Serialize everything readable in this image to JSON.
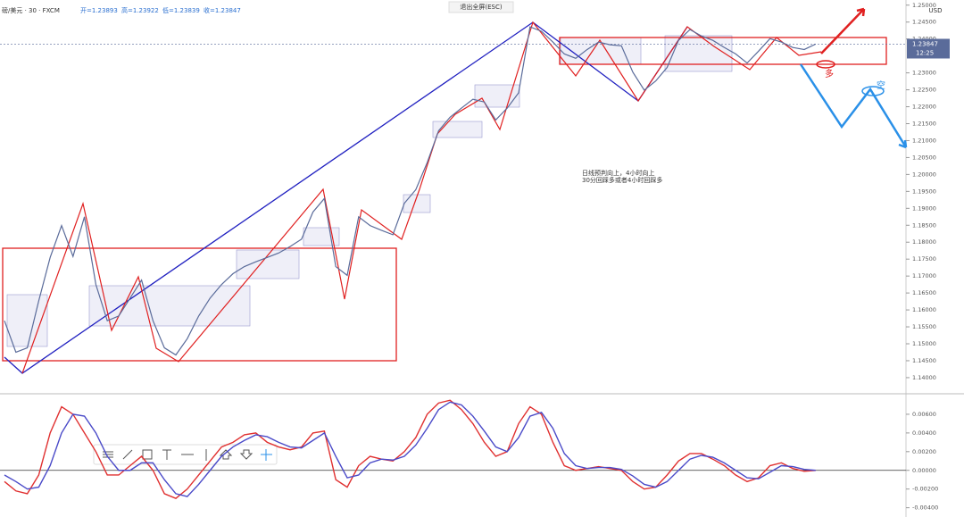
{
  "chart_data": {
    "type": "line",
    "title": "磅/美元 · 30 · FXCM",
    "ohlc": [
      "开=1.23893",
      "高=1.23922",
      "低=1.23839",
      "收=1.23847"
    ],
    "exit_fullscreen": "退出全屏(ESC)",
    "y_axis_label": "USD",
    "last_price": {
      "value": 1.23847,
      "label": "1.23847"
    },
    "countdown": "12:25",
    "annotations": [
      "日线预判向上，4小时向上",
      "30分回踩多或者4小时回踩多",
      "多",
      "空"
    ],
    "color": "#5a6b9a",
    "values": [
      1.1568,
      1.1475,
      1.1488,
      1.1627,
      1.1755,
      1.1849,
      1.1758,
      1.1875,
      1.1675,
      1.1568,
      1.1582,
      1.1635,
      1.1688,
      1.1568,
      1.1488,
      1.1467,
      1.1515,
      1.1582,
      1.1635,
      1.1675,
      1.1707,
      1.1728,
      1.1742,
      1.1755,
      1.1768,
      1.1787,
      1.1809,
      1.1889,
      1.1929,
      1.1728,
      1.1702,
      1.1875,
      1.1849,
      1.1835,
      1.1822,
      1.1915,
      1.1955,
      1.2035,
      1.2129,
      1.2169,
      1.2196,
      1.2222,
      1.2214,
      1.2161,
      1.2196,
      1.2241,
      1.2436,
      1.2423,
      1.2391,
      1.2356,
      1.2343,
      1.2369,
      1.2391,
      1.2383,
      1.238,
      1.2302,
      1.2249,
      1.2276,
      1.2316,
      1.2396,
      1.2428,
      1.2409,
      1.2396,
      1.2375,
      1.2356,
      1.2329,
      1.2364,
      1.2401,
      1.2391,
      1.2375,
      1.2369,
      1.2385
    ],
    "ylim": [
      1.1355,
      1.2502
    ],
    "yticks": [
      {
        "value": 1.14,
        "label": "1.14000"
      },
      {
        "value": 1.145,
        "label": "1.14500"
      },
      {
        "value": 1.15,
        "label": "1.15000"
      },
      {
        "value": 1.155,
        "label": "1.15500"
      },
      {
        "value": 1.16,
        "label": "1.16000"
      },
      {
        "value": 1.165,
        "label": "1.16500"
      },
      {
        "value": 1.17,
        "label": "1.17000"
      },
      {
        "value": 1.175,
        "label": "1.17500"
      },
      {
        "value": 1.18,
        "label": "1.18000"
      },
      {
        "value": 1.185,
        "label": "1.18500"
      },
      {
        "value": 1.19,
        "label": "1.19000"
      },
      {
        "value": 1.195,
        "label": "1.19500"
      },
      {
        "value": 1.2,
        "label": "1.20000"
      },
      {
        "value": 1.205,
        "label": "1.20500"
      },
      {
        "value": 1.21,
        "label": "1.21000"
      },
      {
        "value": 1.215,
        "label": "1.21500"
      },
      {
        "value": 1.22,
        "label": "1.22000"
      },
      {
        "value": 1.225,
        "label": "1.22500"
      },
      {
        "value": 1.23,
        "label": "1.23000"
      },
      {
        "value": 1.24,
        "label": "1.24000"
      },
      {
        "value": 1.245,
        "label": "1.24500"
      },
      {
        "value": 1.25,
        "label": "1.25000"
      }
    ],
    "indicator": {
      "type": "line",
      "ylim": [
        -0.0048,
        0.008
      ],
      "yticks": [
        {
          "value": 0.006,
          "label": "0.00600"
        },
        {
          "value": 0.004,
          "label": "0.00400"
        },
        {
          "value": 0.002,
          "label": "0.00200"
        },
        {
          "value": 0,
          "label": "0.00000"
        },
        {
          "value": -0.002,
          "label": "-0.00200"
        },
        {
          "value": -0.004,
          "label": "-0.00400"
        }
      ],
      "series": [
        {
          "color": "#e03030",
          "values": [
            -0.0012,
            -0.0022,
            -0.0025,
            -0.0005,
            0.004,
            0.0068,
            0.006,
            0.004,
            0.002,
            -0.0005,
            -0.0005,
            0.0005,
            0.0015,
            0,
            -0.0025,
            -0.003,
            -0.002,
            -0.0005,
            0.001,
            0.0025,
            0.003,
            0.0038,
            0.004,
            0.003,
            0.0025,
            0.0022,
            0.0025,
            0.004,
            0.0042,
            -0.001,
            -0.0018,
            0.0005,
            0.0015,
            0.0012,
            0.001,
            0.002,
            0.0035,
            0.006,
            0.0072,
            0.0075,
            0.0065,
            0.005,
            0.003,
            0.0015,
            0.002,
            0.005,
            0.0068,
            0.006,
            0.003,
            0.0005,
            0,
            0.0002,
            0.0004,
            0.0002,
            0,
            -0.0012,
            -0.002,
            -0.0018,
            -0.0005,
            0.001,
            0.0018,
            0.0018,
            0.0012,
            0.0005,
            -0.0005,
            -0.0012,
            -0.0008,
            0.0005,
            0.0008,
            0.0002,
            -0.0001,
            0
          ]
        },
        {
          "color": "#4a4ac8",
          "values": [
            -0.0005,
            -0.0012,
            -0.002,
            -0.0018,
            0.0005,
            0.004,
            0.006,
            0.0058,
            0.004,
            0.0015,
            0,
            0,
            0.0008,
            0.0008,
            -0.001,
            -0.0025,
            -0.0028,
            -0.0015,
            0,
            0.0015,
            0.0025,
            0.0032,
            0.0038,
            0.0036,
            0.003,
            0.0025,
            0.0024,
            0.0032,
            0.004,
            0.0015,
            -0.0008,
            -0.0005,
            0.0008,
            0.0012,
            0.0011,
            0.0015,
            0.0027,
            0.0045,
            0.0065,
            0.0073,
            0.007,
            0.0058,
            0.0042,
            0.0025,
            0.002,
            0.0035,
            0.0058,
            0.0062,
            0.0045,
            0.0018,
            0.0005,
            0.0002,
            0.0003,
            0.0003,
            0.0001,
            -0.0006,
            -0.0015,
            -0.0018,
            -0.0012,
            0,
            0.0012,
            0.0016,
            0.0014,
            0.0008,
            0,
            -0.0008,
            -0.0009,
            -0.0002,
            0.0005,
            0.0004,
            0.0001,
            0
          ]
        }
      ]
    }
  }
}
